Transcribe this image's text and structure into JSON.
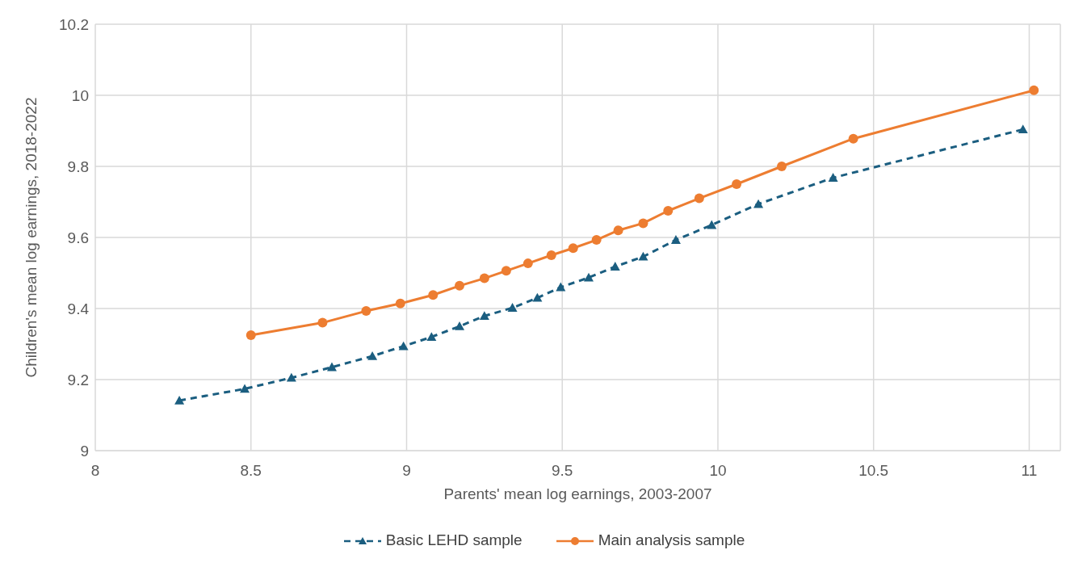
{
  "chart_data": {
    "type": "line",
    "xlabel": "Parents' mean log earnings, 2003-2007",
    "ylabel": "Children's mean log earnings, 2018-2022",
    "xlim": [
      8,
      11.1
    ],
    "xticks": [
      8,
      8.5,
      9,
      9.5,
      10,
      10.5,
      11
    ],
    "ylim": [
      9,
      10.2
    ],
    "yticks": [
      9,
      9.2,
      9.4,
      9.6,
      9.8,
      10,
      10.2
    ],
    "grid": true,
    "legend": "bottom",
    "series": [
      {
        "name": "Basic LEHD sample",
        "color": "#1b5e80",
        "line_style": "dashed",
        "marker": "triangle",
        "x": [
          8.27,
          8.48,
          8.63,
          8.76,
          8.89,
          8.99,
          9.08,
          9.17,
          9.25,
          9.34,
          9.42,
          9.495,
          9.585,
          9.67,
          9.76,
          9.865,
          9.98,
          10.13,
          10.37,
          10.98
        ],
        "values": [
          9.141,
          9.174,
          9.205,
          9.235,
          9.266,
          9.294,
          9.32,
          9.35,
          9.379,
          9.402,
          9.43,
          9.46,
          9.487,
          9.518,
          9.546,
          9.593,
          9.635,
          9.694,
          9.768,
          9.904
        ]
      },
      {
        "name": "Main analysis sample",
        "color": "#ed7d31",
        "line_style": "solid",
        "marker": "circle",
        "x": [
          8.5,
          8.73,
          8.87,
          8.98,
          9.085,
          9.17,
          9.25,
          9.32,
          9.39,
          9.465,
          9.535,
          9.61,
          9.68,
          9.76,
          9.84,
          9.94,
          10.06,
          10.205,
          10.435,
          11.015
        ],
        "values": [
          9.325,
          9.36,
          9.393,
          9.414,
          9.438,
          9.464,
          9.485,
          9.506,
          9.527,
          9.55,
          9.57,
          9.593,
          9.62,
          9.64,
          9.675,
          9.71,
          9.75,
          9.8,
          9.878,
          10.014
        ]
      }
    ]
  }
}
